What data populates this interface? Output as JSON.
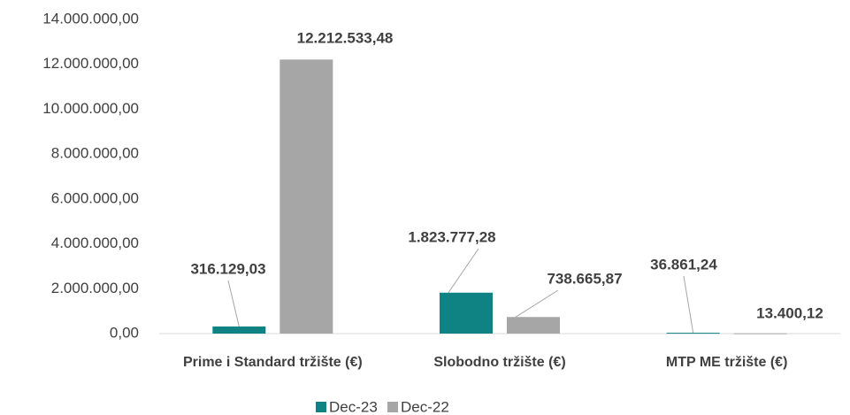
{
  "chart_data": {
    "type": "bar",
    "categories": [
      "Prime i Standard tržište (€)",
      "Slobodno tržište (€)",
      "MTP ME tržište (€)"
    ],
    "series": [
      {
        "name": "Dec-23",
        "color": "#0f8383",
        "values": [
          316129.03,
          1823777.28,
          36861.24
        ],
        "value_labels": [
          "316.129,03",
          "1.823.777,28",
          "36.861,24"
        ]
      },
      {
        "name": "Dec-22",
        "color": "#a6a6a6",
        "values": [
          12212533.48,
          738665.87,
          13400.12
        ],
        "value_labels": [
          "12.212.533,48",
          "738.665,87",
          "13.400,12"
        ]
      }
    ],
    "ylim": [
      0,
      14000000
    ],
    "yticks": [
      {
        "value": 0,
        "label": "0,00"
      },
      {
        "value": 2000000,
        "label": "2.000.000,00"
      },
      {
        "value": 4000000,
        "label": "4.000.000,00"
      },
      {
        "value": 6000000,
        "label": "6.000.000,00"
      },
      {
        "value": 8000000,
        "label": "8.000.000,00"
      },
      {
        "value": 10000000,
        "label": "10.000.000,00"
      },
      {
        "value": 12000000,
        "label": "12.000.000,00"
      },
      {
        "value": 14000000,
        "label": "14.000.000,00"
      }
    ],
    "grid": false,
    "legend": "bottom"
  }
}
